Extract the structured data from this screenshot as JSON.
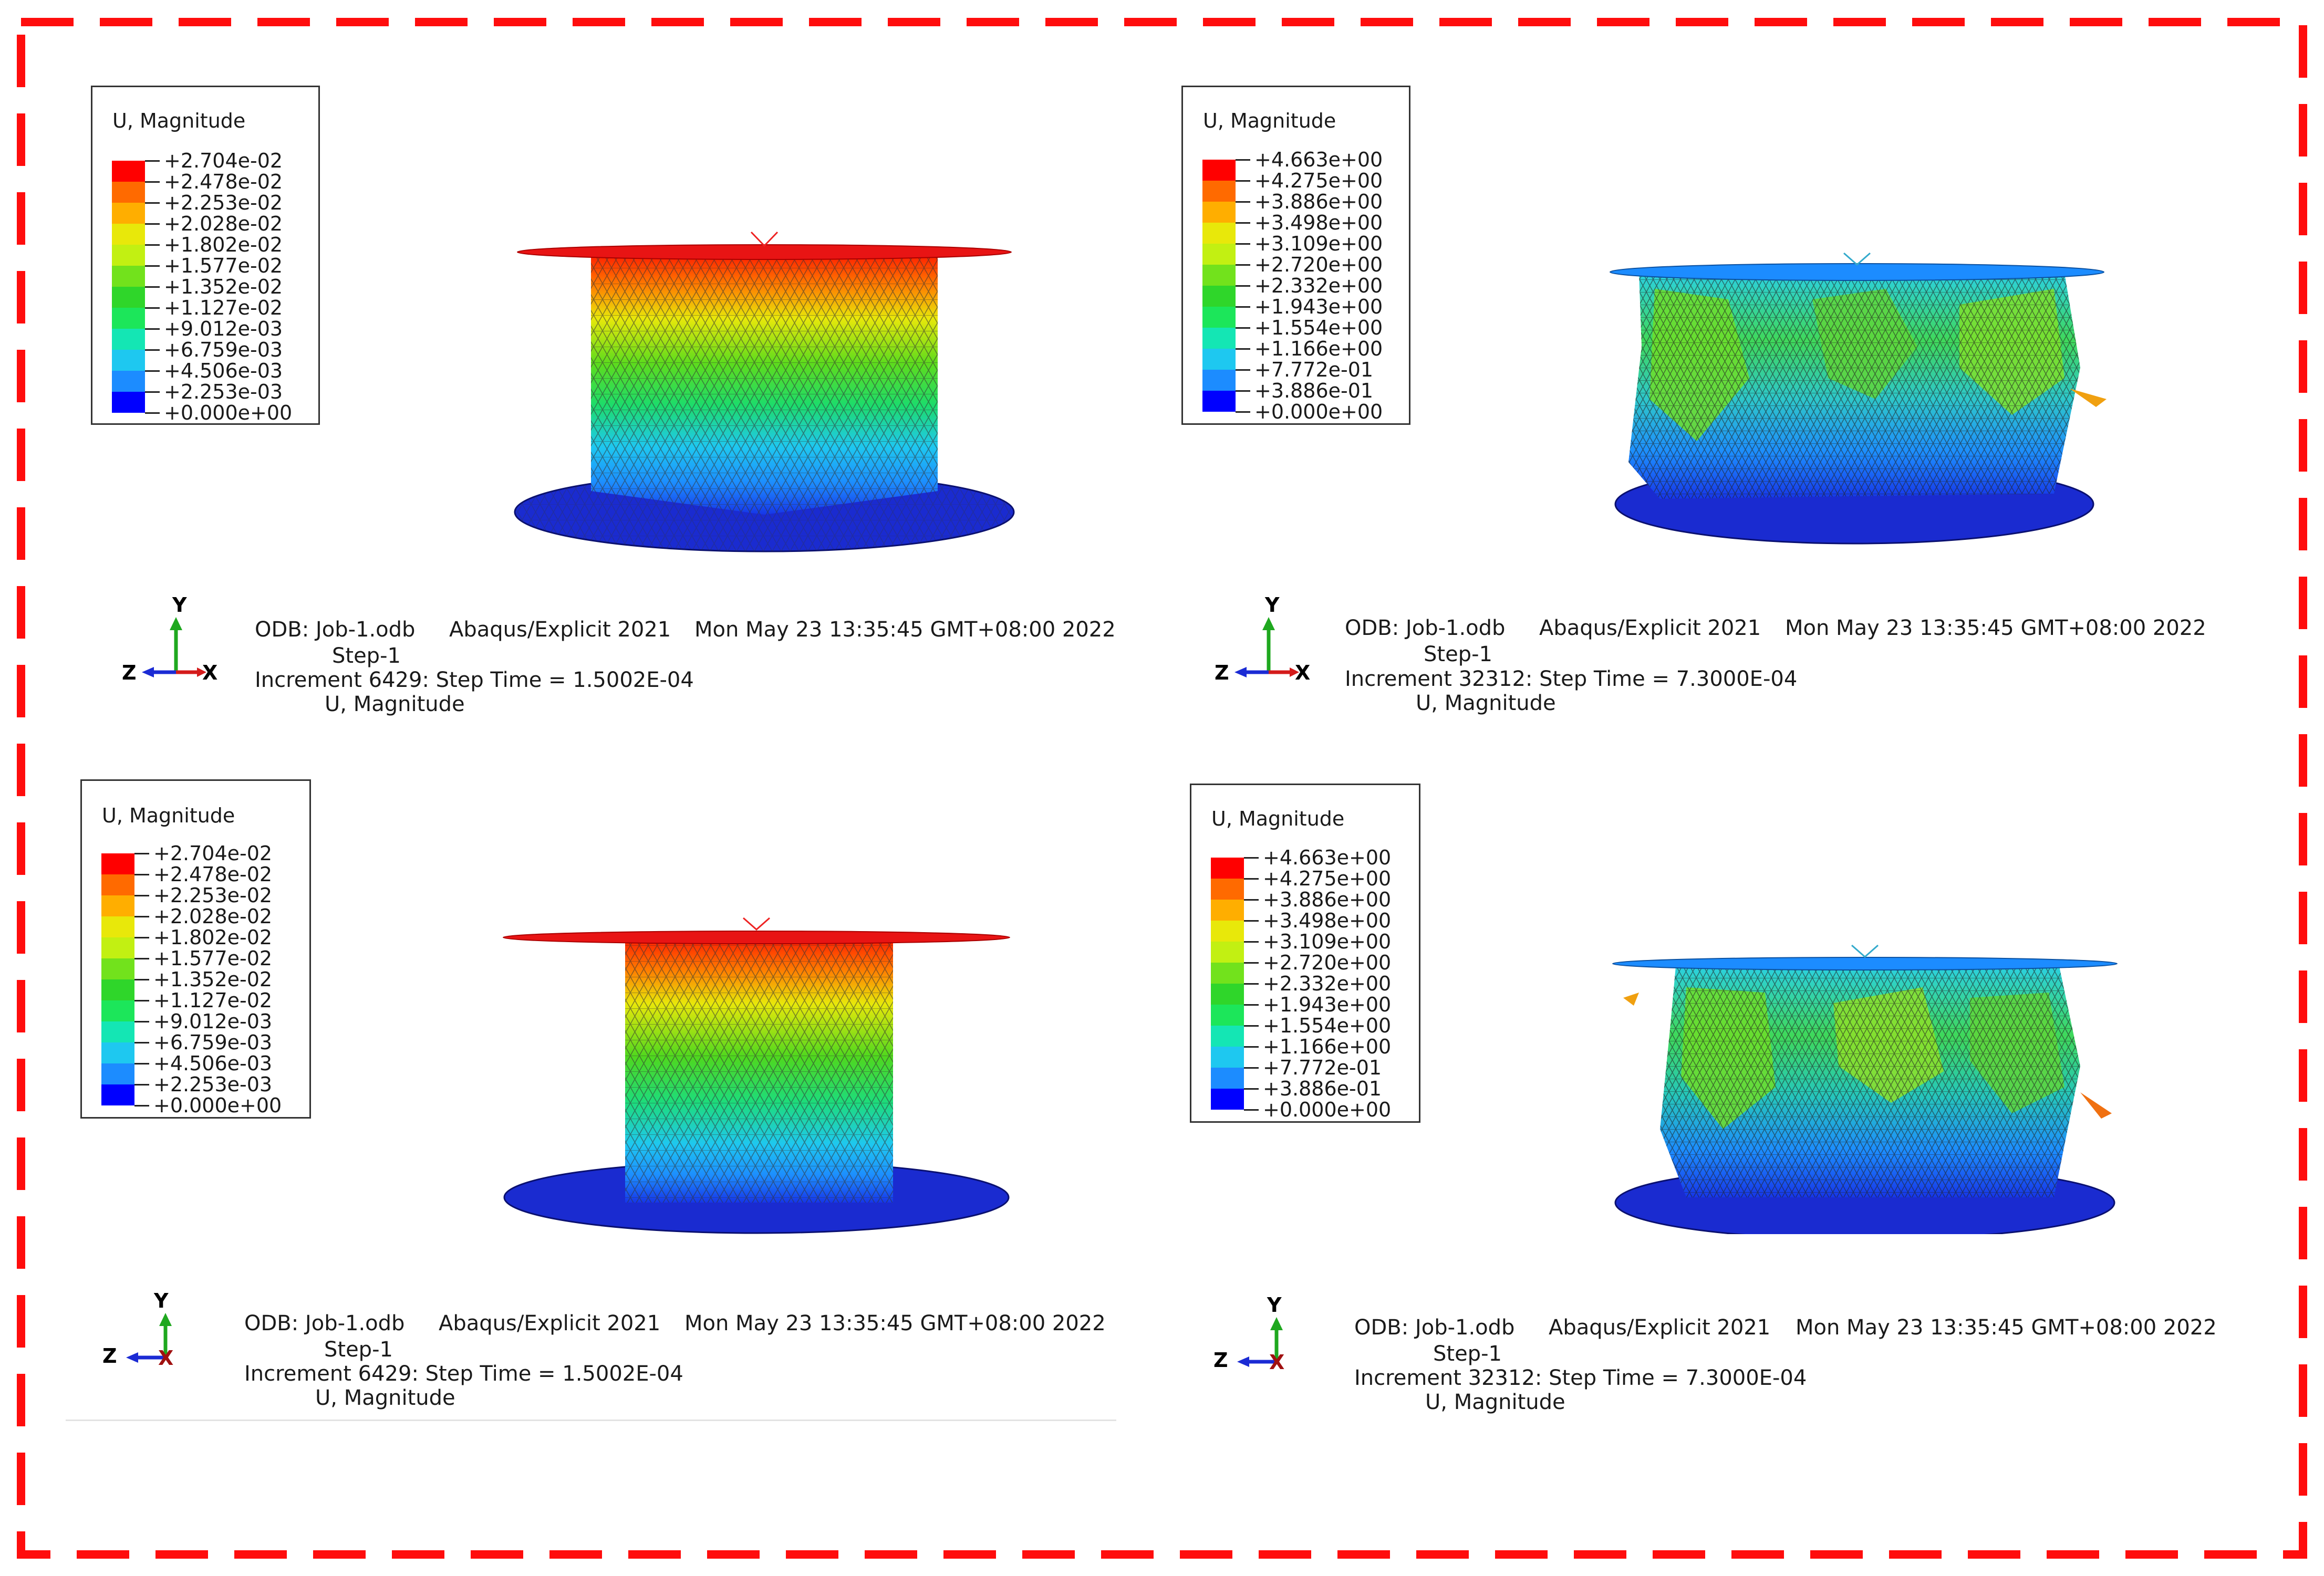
{
  "colors": {
    "frame_dash": "#ff0d0d",
    "contour": [
      "#0000ff",
      "#0a4bff",
      "#1c8cff",
      "#1ec8f0",
      "#14e6b4",
      "#1ce65a",
      "#2fd62a",
      "#72e21c",
      "#c2f012",
      "#e8e80a",
      "#ffae00",
      "#ff6a00",
      "#ff0000"
    ]
  },
  "panels": [
    {
      "legend": {
        "title": "U, Magnitude",
        "values": [
          "+2.704e-02",
          "+2.478e-02",
          "+2.253e-02",
          "+2.028e-02",
          "+1.802e-02",
          "+1.577e-02",
          "+1.352e-02",
          "+1.127e-02",
          "+9.012e-03",
          "+6.759e-03",
          "+4.506e-03",
          "+2.253e-03",
          "+0.000e+00"
        ]
      },
      "info": {
        "odb": "ODB: Job-1.odb",
        "solver": "Abaqus/Explicit 2021",
        "date": "Mon May 23 13:35:45 GMT+08:00 2022",
        "step": "Step-1",
        "increment": "Increment     6429: Step Time =    1.5002E-04",
        "variable": "U, Magnitude"
      },
      "triad": {
        "y": "Y",
        "z": "Z",
        "x": "X"
      }
    },
    {
      "legend": {
        "title": "U, Magnitude",
        "values": [
          "+4.663e+00",
          "+4.275e+00",
          "+3.886e+00",
          "+3.498e+00",
          "+3.109e+00",
          "+2.720e+00",
          "+2.332e+00",
          "+1.943e+00",
          "+1.554e+00",
          "+1.166e+00",
          "+7.772e-01",
          "+3.886e-01",
          "+0.000e+00"
        ]
      },
      "info": {
        "odb": "ODB: Job-1.odb",
        "solver": "Abaqus/Explicit 2021",
        "date": "Mon May 23 13:35:45 GMT+08:00 2022",
        "step": "Step-1",
        "increment": "Increment     32312: Step Time =    7.3000E-04",
        "variable": "U, Magnitude"
      },
      "triad": {
        "y": "Y",
        "z": "Z",
        "x": "X"
      }
    },
    {
      "legend": {
        "title": "U, Magnitude",
        "values": [
          "+2.704e-02",
          "+2.478e-02",
          "+2.253e-02",
          "+2.028e-02",
          "+1.802e-02",
          "+1.577e-02",
          "+1.352e-02",
          "+1.127e-02",
          "+9.012e-03",
          "+6.759e-03",
          "+4.506e-03",
          "+2.253e-03",
          "+0.000e+00"
        ]
      },
      "info": {
        "odb": "ODB: Job-1.odb",
        "solver": "Abaqus/Explicit 2021",
        "date": "Mon May 23 13:35:45 GMT+08:00 2022",
        "step": "Step-1",
        "increment": "Increment     6429: Step Time =    1.5002E-04",
        "variable": "U, Magnitude"
      },
      "triad": {
        "y": "Y",
        "z": "Z",
        "x": "X"
      }
    },
    {
      "legend": {
        "title": "U, Magnitude",
        "values": [
          "+4.663e+00",
          "+4.275e+00",
          "+3.886e+00",
          "+3.498e+00",
          "+3.109e+00",
          "+2.720e+00",
          "+2.332e+00",
          "+1.943e+00",
          "+1.554e+00",
          "+1.166e+00",
          "+7.772e-01",
          "+3.886e-01",
          "+0.000e+00"
        ]
      },
      "info": {
        "odb": "ODB: Job-1.odb",
        "solver": "Abaqus/Explicit 2021",
        "date": "Mon May 23 13:35:45 GMT+08:00 2022",
        "step": "Step-1",
        "increment": "Increment     32312: Step Time =    7.3000E-04",
        "variable": "U, Magnitude"
      },
      "triad": {
        "y": "Y",
        "z": "Z",
        "x": "X"
      }
    }
  ]
}
